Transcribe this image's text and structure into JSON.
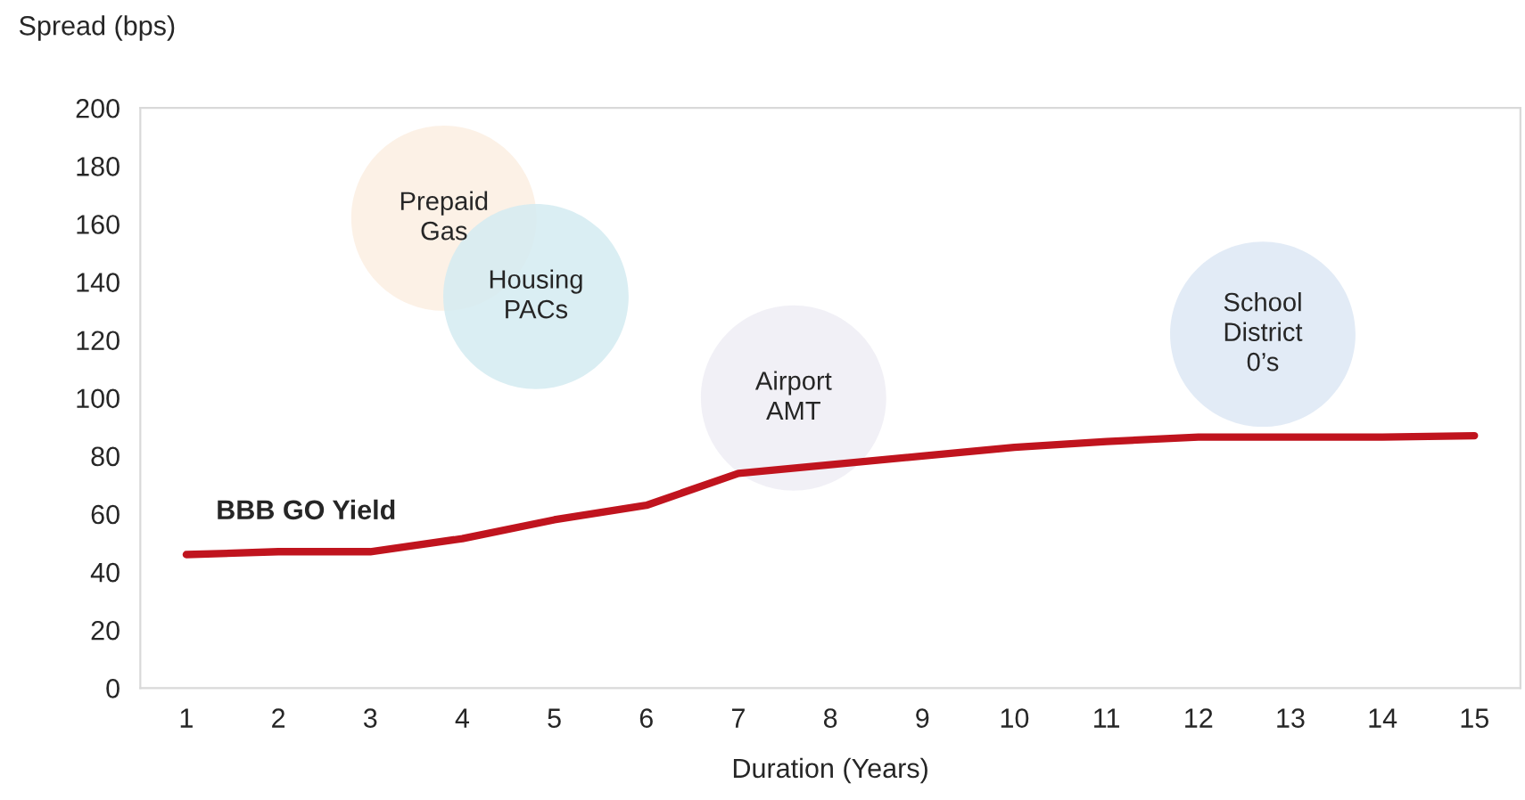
{
  "chart_data": {
    "type": "line",
    "xlabel": "Duration (Years)",
    "ylabel": "Spread (bps)",
    "x": [
      1,
      2,
      3,
      4,
      5,
      6,
      7,
      8,
      9,
      10,
      11,
      12,
      13,
      14,
      15
    ],
    "series": [
      {
        "name": "BBB GO Yield",
        "color": "#c0141e",
        "values": [
          46,
          47,
          47,
          51.5,
          58,
          63,
          74,
          77,
          80,
          83,
          85,
          86.5,
          86.5,
          86.5,
          87
        ]
      },
      {
        "name": "Prepaid\nGas",
        "type": "bubble",
        "color": "#fbeee2",
        "marker": "circle",
        "x": [
          3.8
        ],
        "values": [
          162
        ],
        "sizes": [
          1
        ]
      },
      {
        "name": "Housing\nPACs",
        "type": "bubble",
        "color": "#d3ebf1",
        "marker": "circle",
        "x": [
          4.8
        ],
        "values": [
          135
        ],
        "sizes": [
          1
        ]
      },
      {
        "name": "Airport\nAMT",
        "type": "bubble",
        "color": "#efedf4",
        "marker": "circle",
        "x": [
          7.6
        ],
        "values": [
          100
        ],
        "sizes": [
          1
        ]
      },
      {
        "name": "School\nDistrict\n0’s",
        "type": "bubble",
        "color": "#dde8f5",
        "marker": "circle",
        "x": [
          12.7
        ],
        "values": [
          122
        ],
        "sizes": [
          1
        ]
      }
    ],
    "xlim": [
      0.5,
      15.5
    ],
    "ylim": [
      0,
      200
    ],
    "xticks": [
      1,
      2,
      3,
      4,
      5,
      6,
      7,
      8,
      9,
      10,
      11,
      12,
      13,
      14,
      15
    ],
    "yticks": [
      0,
      20,
      40,
      60,
      80,
      100,
      120,
      140,
      160,
      180,
      200
    ],
    "grid": false,
    "legend": false,
    "marker": "none",
    "line_style": "solid"
  }
}
